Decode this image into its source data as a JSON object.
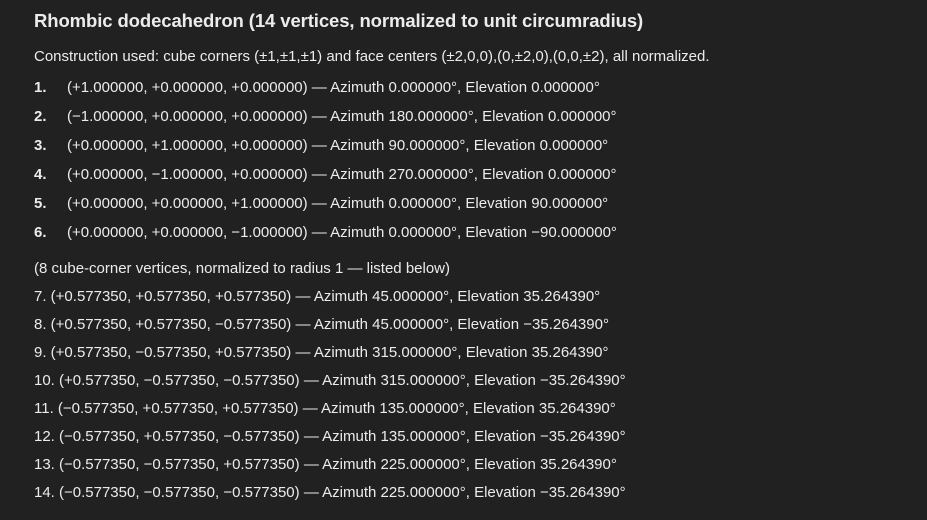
{
  "title": "Rhombic dodecahedron (14 vertices, normalized to unit circumradius)",
  "intro": "Construction used: cube corners (±1,±1,±1) and face centers (±2,0,0),(0,±2,0),(0,0,±2), all normalized.",
  "face_center_vertices": [
    {
      "num": "1.",
      "text": "(+1.000000, +0.000000, +0.000000) — Azimuth 0.000000°, Elevation 0.000000°"
    },
    {
      "num": "2.",
      "text": "(−1.000000, +0.000000, +0.000000) — Azimuth 180.000000°, Elevation 0.000000°"
    },
    {
      "num": "3.",
      "text": "(+0.000000, +1.000000, +0.000000) — Azimuth 90.000000°, Elevation 0.000000°"
    },
    {
      "num": "4.",
      "text": "(+0.000000, −1.000000, +0.000000) — Azimuth 270.000000°, Elevation 0.000000°"
    },
    {
      "num": "5.",
      "text": "(+0.000000, +0.000000, +1.000000) — Azimuth 0.000000°, Elevation 90.000000°"
    },
    {
      "num": "6.",
      "text": "(+0.000000, +0.000000, −1.000000) — Azimuth 0.000000°, Elevation −90.000000°"
    }
  ],
  "subnote": "(8 cube-corner vertices, normalized to radius 1 — listed below)",
  "cube_corner_vertices": [
    "7. (+0.577350, +0.577350, +0.577350) — Azimuth 45.000000°, Elevation 35.264390°",
    "8. (+0.577350, +0.577350, −0.577350) — Azimuth 45.000000°, Elevation −35.264390°",
    "9. (+0.577350, −0.577350, +0.577350) — Azimuth 315.000000°, Elevation 35.264390°",
    "10. (+0.577350, −0.577350, −0.577350) — Azimuth 315.000000°, Elevation −35.264390°",
    "11. (−0.577350, +0.577350, +0.577350) — Azimuth 135.000000°, Elevation 35.264390°",
    "12. (−0.577350, +0.577350, −0.577350) — Azimuth 135.000000°, Elevation −35.264390°",
    "13. (−0.577350, −0.577350, +0.577350) — Azimuth 225.000000°, Elevation 35.264390°",
    "14. (−0.577350, −0.577350, −0.577350) — Azimuth 225.000000°, Elevation −35.264390°"
  ]
}
